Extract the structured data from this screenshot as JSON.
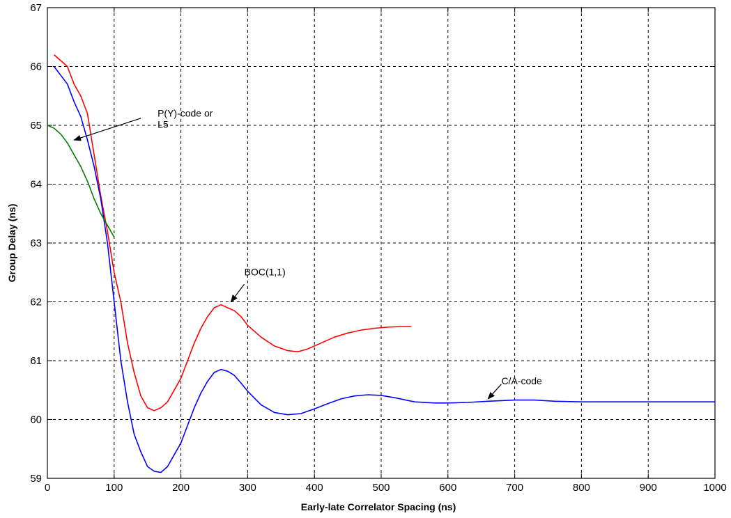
{
  "chart_data": {
    "type": "line",
    "title": "",
    "xlabel": "Early-late Correlator Spacing (ns)",
    "ylabel": "Group Delay (ns)",
    "xlim": [
      0,
      1000
    ],
    "ylim": [
      59,
      67
    ],
    "xticks": [
      0,
      100,
      200,
      300,
      400,
      500,
      600,
      700,
      800,
      900,
      1000
    ],
    "yticks": [
      59,
      60,
      61,
      62,
      63,
      64,
      65,
      66,
      67
    ],
    "grid": true,
    "legend": "none",
    "series": [
      {
        "color": "#ff0000",
        "x": [
          10,
          20,
          30,
          40,
          50,
          60,
          70,
          80,
          90,
          100,
          110,
          120,
          130,
          140,
          150,
          160,
          170,
          180,
          190,
          200,
          210,
          220,
          230,
          240,
          250,
          260,
          270,
          280,
          290,
          300,
          320,
          340,
          360,
          375,
          390,
          410,
          430,
          450,
          470,
          490,
          510,
          530,
          545
        ],
        "y": [
          66.2,
          66.1,
          66.0,
          65.7,
          65.5,
          65.2,
          64.5,
          63.8,
          63.2,
          62.5,
          62.0,
          61.3,
          60.8,
          60.4,
          60.2,
          60.15,
          60.2,
          60.3,
          60.5,
          60.7,
          61.0,
          61.3,
          61.55,
          61.75,
          61.9,
          61.95,
          61.9,
          61.85,
          61.75,
          61.6,
          61.4,
          61.25,
          61.17,
          61.15,
          61.2,
          61.3,
          61.4,
          61.47,
          61.52,
          61.55,
          61.57,
          61.58,
          61.58
        ]
      },
      {
        "color": "#0000ff",
        "x": [
          10,
          20,
          30,
          40,
          50,
          60,
          70,
          80,
          90,
          100,
          110,
          120,
          130,
          140,
          150,
          160,
          170,
          180,
          190,
          200,
          210,
          220,
          230,
          240,
          250,
          260,
          270,
          280,
          290,
          300,
          320,
          340,
          360,
          380,
          400,
          420,
          440,
          460,
          480,
          500,
          520,
          550,
          580,
          600,
          630,
          660,
          700,
          730,
          760,
          800,
          850,
          900,
          950,
          1000
        ],
        "y": [
          66.0,
          65.85,
          65.7,
          65.4,
          65.15,
          64.75,
          64.3,
          63.75,
          63.0,
          62.0,
          61.0,
          60.3,
          59.75,
          59.45,
          59.2,
          59.12,
          59.1,
          59.2,
          59.4,
          59.6,
          59.9,
          60.2,
          60.45,
          60.65,
          60.8,
          60.85,
          60.82,
          60.75,
          60.62,
          60.48,
          60.25,
          60.12,
          60.08,
          60.1,
          60.18,
          60.27,
          60.35,
          60.4,
          60.42,
          60.41,
          60.37,
          60.3,
          60.28,
          60.28,
          60.29,
          60.31,
          60.33,
          60.33,
          60.31,
          60.3,
          60.3,
          60.3,
          60.3,
          60.3
        ]
      },
      {
        "color": "#008000",
        "x": [
          0,
          10,
          20,
          30,
          40,
          50,
          60,
          70,
          80,
          90,
          100
        ],
        "y": [
          65.0,
          64.95,
          64.85,
          64.7,
          64.5,
          64.3,
          64.05,
          63.75,
          63.5,
          63.3,
          63.1
        ]
      }
    ],
    "annotations": [
      {
        "lines": [
          "P(Y)-code or",
          "L5"
        ],
        "text_at": [
          165,
          65.15
        ],
        "arrow_from": [
          140,
          65.12
        ],
        "arrow_to": [
          40,
          64.75
        ]
      },
      {
        "lines": [
          "BOC(1,1)"
        ],
        "text_at": [
          295,
          62.45
        ],
        "arrow_from": [
          295,
          62.3
        ],
        "arrow_to": [
          275,
          62.0
        ]
      },
      {
        "lines": [
          "C/A-code"
        ],
        "text_at": [
          680,
          60.6
        ],
        "arrow_from": [
          680,
          60.6
        ],
        "arrow_to": [
          660,
          60.35
        ]
      }
    ]
  }
}
